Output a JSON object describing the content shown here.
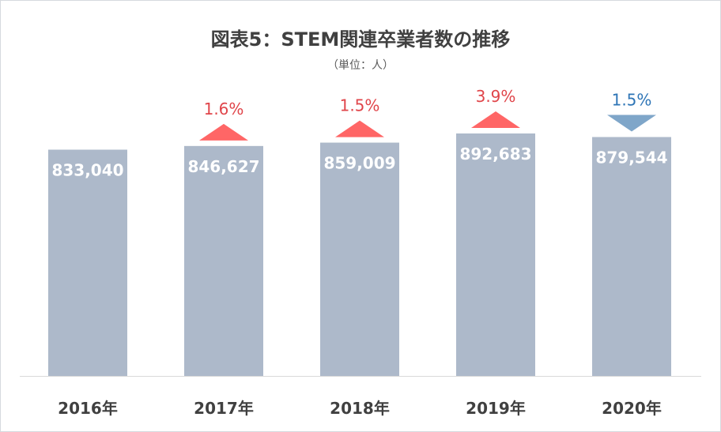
{
  "chart_data": {
    "type": "bar",
    "title": "図表5：STEM関連卒業者数の推移",
    "unit_label": "（単位：人）",
    "categories": [
      "2016年",
      "2017年",
      "2018年",
      "2019年",
      "2020年"
    ],
    "values": [
      833040,
      846627,
      859009,
      892683,
      879544
    ],
    "value_labels": [
      "833,040",
      "846,627",
      "859,009",
      "892,683",
      "879,544"
    ],
    "change_labels": [
      "",
      "1.6%",
      "1.5%",
      "3.9%",
      "1.5%"
    ],
    "change_direction": [
      "",
      "up",
      "up",
      "up",
      "down"
    ],
    "ylim": [
      0,
      892683
    ],
    "grid": false,
    "legend": "none",
    "colors": {
      "bar": "#adb9ca",
      "up": "#ff6666",
      "up_text": "#e0454a",
      "down": "#7fa6c9",
      "down_text": "#2e75b6",
      "axis_text": "#404040",
      "value_text": "#ffffff"
    }
  }
}
